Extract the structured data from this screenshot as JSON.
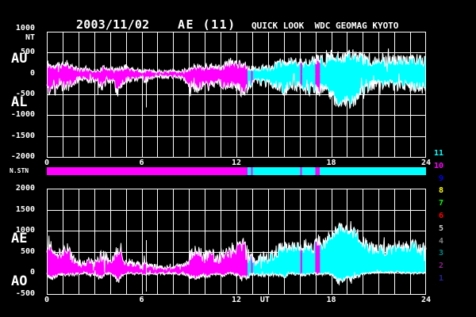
{
  "header": {
    "date": "2003/11/02",
    "title": "AE (11)",
    "subtitle": "QUICK LOOK  WDC GEOMAG KYOTO"
  },
  "colors": {
    "background": "#000000",
    "grid": "#ffffff",
    "text": "#ffffff",
    "magenta": "#ff00ff",
    "cyan": "#00ffff"
  },
  "top_panel": {
    "unit_value": "1000",
    "unit": "NT",
    "label_upper": "AU",
    "label_lower": "AL",
    "yticks": [
      {
        "v": 500,
        "label": "500"
      },
      {
        "v": 0,
        "label": "0"
      },
      {
        "v": -500,
        "label": "-500"
      },
      {
        "v": -1000,
        "label": "-1000"
      },
      {
        "v": -1500,
        "label": "-1500"
      },
      {
        "v": -2000,
        "label": "-2000"
      }
    ],
    "xticks": [
      {
        "h": 0,
        "label": "0"
      },
      {
        "h": 6,
        "label": "6"
      },
      {
        "h": 12,
        "label": "12"
      },
      {
        "h": 18,
        "label": "18"
      },
      {
        "h": 24,
        "label": "24"
      }
    ]
  },
  "bottom_panel": {
    "label_upper": "AE",
    "label_lower": "AO",
    "yticks": [
      {
        "v": 2000,
        "label": "2000"
      },
      {
        "v": 1500,
        "label": "1500"
      },
      {
        "v": 1000,
        "label": "1000"
      },
      {
        "v": 500,
        "label": "500"
      },
      {
        "v": 0,
        "label": "0"
      },
      {
        "v": -500,
        "label": "-500"
      }
    ],
    "xticks": [
      {
        "h": 0,
        "label": "0"
      },
      {
        "h": 6,
        "label": "6"
      },
      {
        "h": 12,
        "label": "12"
      },
      {
        "h": 13.8,
        "label": "UT"
      },
      {
        "h": 18,
        "label": "18"
      },
      {
        "h": 24,
        "label": "24"
      }
    ]
  },
  "nstn": {
    "label": "N.STN",
    "segments": [
      {
        "start": 0,
        "end": 12.7,
        "color": "#ff00ff"
      },
      {
        "start": 12.7,
        "end": 12.93,
        "color": "#00ffff"
      },
      {
        "start": 12.93,
        "end": 13.03,
        "color": "#ff00ff"
      },
      {
        "start": 13.03,
        "end": 16.05,
        "color": "#00ffff"
      },
      {
        "start": 16.05,
        "end": 16.15,
        "color": "#ff00ff"
      },
      {
        "start": 16.15,
        "end": 17.0,
        "color": "#00ffff"
      },
      {
        "start": 17.0,
        "end": 17.28,
        "color": "#ff00ff"
      },
      {
        "start": 17.28,
        "end": 24,
        "color": "#00ffff"
      }
    ]
  },
  "stations": [
    {
      "n": "11",
      "color": "#00ffff"
    },
    {
      "n": "10",
      "color": "#ff00ff"
    },
    {
      "n": "9",
      "color": "#0000ff"
    },
    {
      "n": "8",
      "color": "#ffff00"
    },
    {
      "n": "7",
      "color": "#00ff00"
    },
    {
      "n": "6",
      "color": "#ff0000"
    },
    {
      "n": "5",
      "color": "#c8c8c8"
    },
    {
      "n": "4",
      "color": "#808080"
    },
    {
      "n": "3",
      "color": "#008888"
    },
    {
      "n": "2",
      "color": "#882288"
    },
    {
      "n": "1",
      "color": "#222299"
    }
  ],
  "chart_data": [
    {
      "type": "area",
      "title": "AU / AL auroral electrojet indices, 2003/11/02",
      "xlabel": "UT (hours)",
      "ylabel": "nT",
      "xlim": [
        0,
        24
      ],
      "ylim": [
        -2000,
        1000
      ],
      "grid_step_nt": 500,
      "grid_step_hours": 1,
      "x_step_hours": 0.25,
      "series": [
        {
          "name": "AU",
          "values": [
            250,
            180,
            150,
            200,
            230,
            250,
            180,
            120,
            100,
            90,
            120,
            100,
            70,
            60,
            110,
            150,
            120,
            100,
            90,
            120,
            150,
            120,
            100,
            80,
            60,
            80,
            60,
            50,
            60,
            50,
            40,
            50,
            60,
            50,
            60,
            80,
            100,
            150,
            180,
            150,
            130,
            150,
            180,
            150,
            130,
            180,
            250,
            280,
            250,
            210,
            230,
            150,
            120,
            100,
            120,
            150,
            130,
            150,
            200,
            250,
            230,
            250,
            300,
            280,
            260,
            250,
            300,
            280,
            320,
            350,
            310,
            380,
            420,
            400,
            380,
            420,
            410,
            460,
            420,
            380,
            350,
            310,
            280,
            300,
            320,
            300,
            280,
            300,
            320,
            340,
            320,
            300,
            320,
            340,
            320,
            300,
            310
          ]
        },
        {
          "name": "AL",
          "values": [
            -300,
            -430,
            -350,
            -250,
            -300,
            -350,
            -250,
            -200,
            -150,
            -120,
            -150,
            -180,
            -150,
            -250,
            -300,
            -200,
            -150,
            -200,
            -500,
            -250,
            -150,
            -120,
            -150,
            -120,
            -100,
            -150,
            -120,
            -100,
            -80,
            -70,
            -80,
            -70,
            -80,
            -90,
            -100,
            -150,
            -250,
            -350,
            -400,
            -300,
            -250,
            -300,
            -250,
            -200,
            -250,
            -300,
            -250,
            -300,
            -350,
            -400,
            -480,
            -300,
            -200,
            -150,
            -200,
            -250,
            -200,
            -250,
            -300,
            -350,
            -400,
            -350,
            -300,
            -350,
            -300,
            -350,
            -400,
            -300,
            -350,
            -450,
            -350,
            -400,
            -500,
            -650,
            -800,
            -700,
            -620,
            -720,
            -650,
            -500,
            -400,
            -350,
            -300,
            -280,
            -250,
            -280,
            -250,
            -270,
            -280,
            -300,
            -320,
            -300,
            -320,
            -350,
            -320,
            -300,
            -320
          ]
        }
      ],
      "white_gap_lines": [
        {
          "hour": 3.2,
          "from": -120,
          "to": -510
        },
        {
          "hour": 6.3,
          "from": -80,
          "to": -810
        }
      ]
    },
    {
      "type": "area",
      "title": "AE / AO auroral electrojet indices, 2003/11/02",
      "xlabel": "UT (hours)",
      "ylabel": "nT",
      "xlim": [
        0,
        24
      ],
      "ylim": [
        -500,
        2000
      ],
      "grid_step_nt": 500,
      "grid_step_hours": 1,
      "x_step_hours": 0.25,
      "series": [
        {
          "name": "AE",
          "values": [
            550,
            610,
            500,
            450,
            530,
            600,
            430,
            320,
            250,
            210,
            270,
            280,
            220,
            310,
            410,
            350,
            270,
            300,
            590,
            370,
            300,
            240,
            250,
            200,
            160,
            230,
            180,
            150,
            140,
            120,
            120,
            120,
            140,
            140,
            160,
            230,
            350,
            500,
            580,
            450,
            380,
            450,
            430,
            350,
            380,
            480,
            500,
            580,
            600,
            610,
            710,
            450,
            320,
            250,
            320,
            400,
            330,
            400,
            500,
            600,
            630,
            600,
            600,
            630,
            560,
            600,
            700,
            580,
            670,
            800,
            660,
            780,
            920,
            1000,
            1100,
            1050,
            1000,
            1100,
            1000,
            850,
            750,
            660,
            580,
            580,
            570,
            580,
            530,
            570,
            600,
            640,
            640,
            600,
            640,
            690,
            640,
            600,
            630
          ]
        },
        {
          "name": "AO",
          "values": [
            -25,
            -125,
            -100,
            -25,
            -35,
            -50,
            -35,
            -40,
            -25,
            -15,
            -15,
            -40,
            -40,
            -95,
            -95,
            -25,
            -15,
            -50,
            -205,
            -65,
            0,
            0,
            -25,
            -20,
            -20,
            -35,
            -30,
            -25,
            -10,
            -10,
            -20,
            -10,
            -10,
            -20,
            -20,
            -35,
            -75,
            -100,
            -110,
            -75,
            -60,
            -75,
            -35,
            -25,
            -60,
            -60,
            0,
            -10,
            -50,
            -95,
            -125,
            -75,
            -40,
            -25,
            -40,
            -50,
            -35,
            -50,
            -50,
            -50,
            -85,
            -50,
            0,
            -35,
            -20,
            -50,
            -50,
            -10,
            -15,
            -50,
            -20,
            -10,
            -40,
            -125,
            -210,
            -140,
            -105,
            -130,
            -115,
            -60,
            -25,
            -20,
            -10,
            10,
            35,
            10,
            15,
            15,
            20,
            20,
            0,
            0,
            0,
            -5,
            0,
            0,
            -5
          ]
        }
      ],
      "white_gap_lines": [
        {
          "hour": 6.3,
          "from": 780,
          "to": -440
        }
      ]
    }
  ]
}
